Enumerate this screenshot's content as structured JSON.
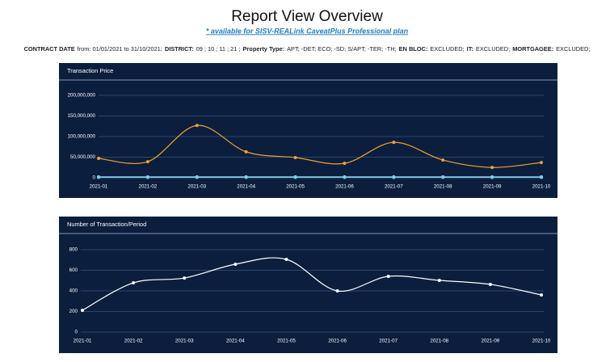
{
  "header": {
    "title": "Report View Overview",
    "link": "* available for SISV-REALink CaveatPlus Professional plan",
    "filters": [
      {
        "label": "CONTRACT DATE",
        "value": "from: 01/01/2021 to 31/10/2021;"
      },
      {
        "label": "DISTRICT:",
        "value": "09 ; 10 ; 11 ; 21 ;"
      },
      {
        "label": "Property Type:",
        "value": "APT; -DET; ECO; -SD; S/APT; -TER; -TH;"
      },
      {
        "label": "EN BLOC:",
        "value": "EXCLUDED;"
      },
      {
        "label": "IT:",
        "value": "EXCLUDED;"
      },
      {
        "label": "MORTGAGEE:",
        "value": "EXCLUDED;"
      }
    ]
  },
  "chart_data": [
    {
      "type": "line",
      "title": "Transaction Price",
      "categories": [
        "2021-01",
        "2021-02",
        "2021-03",
        "2021-04",
        "2021-05",
        "2021-06",
        "2021-07",
        "2021-08",
        "2021-09",
        "2021-10"
      ],
      "series": [
        {
          "color": "#f0a030",
          "values": [
            47000000,
            39000000,
            127000000,
            63000000,
            49000000,
            35000000,
            86000000,
            43000000,
            25000000,
            37000000
          ]
        },
        {
          "color": "#d8ecf8",
          "values": [
            2000000,
            2000000,
            2000000,
            2000000,
            2000000,
            2000000,
            2000000,
            2000000,
            2000000,
            2000000
          ]
        },
        {
          "color": "#6fd0ea",
          "values": [
            1000000,
            1000000,
            1000000,
            1000000,
            1000000,
            1000000,
            1000000,
            1000000,
            1000000,
            1000000
          ]
        }
      ],
      "ylim": [
        0,
        200000000
      ],
      "yticks": [
        0,
        {
          "value": 50000000,
          "label": "50,000,000"
        },
        {
          "value": 100000000,
          "label": "100,000,000"
        },
        {
          "value": 150000000,
          "label": "150,000,000"
        },
        {
          "value": 200000000,
          "label": "200,000,000"
        }
      ],
      "grid": true
    },
    {
      "type": "line",
      "title": "Number of Transaction/Period",
      "categories": [
        "2021-01",
        "2021-02",
        "2021-03",
        "2021-04",
        "2021-05",
        "2021-06",
        "2021-07",
        "2021-08",
        "2021-09",
        "2021-10"
      ],
      "series": [
        {
          "color": "#ffffff",
          "values": [
            212,
            478,
            525,
            659,
            706,
            400,
            541,
            502,
            463,
            361
          ]
        }
      ],
      "ylim": [
        0,
        800
      ],
      "yticks": [
        0,
        200,
        400,
        600,
        800
      ],
      "grid": true
    }
  ]
}
